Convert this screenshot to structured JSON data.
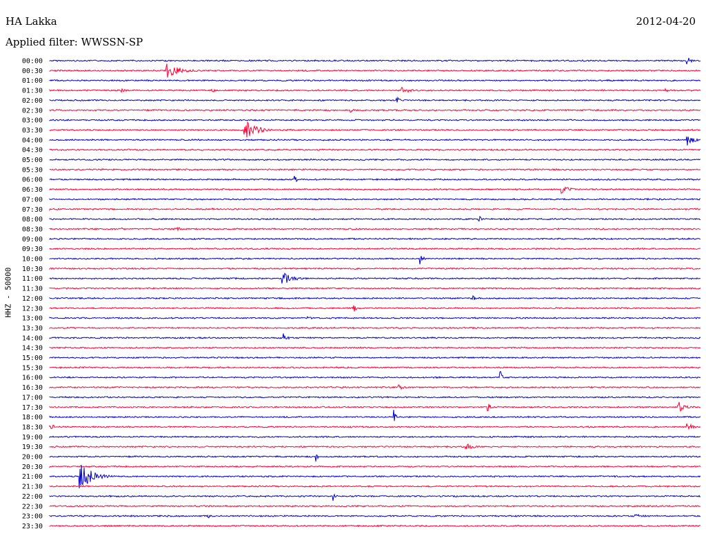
{
  "header": {
    "station": "HA Lakka",
    "date": "2012-04-20",
    "filter": "Applied filter: WWSSN-SP"
  },
  "chart_data": {
    "type": "line",
    "title": "HA Lakka",
    "ylabel": "HHZ - 50000",
    "colors": {
      "blue": "#0000cc",
      "red": "#ff0033"
    },
    "rows": [
      "00:00",
      "00:30",
      "01:00",
      "01:30",
      "02:00",
      "02:30",
      "03:00",
      "03:30",
      "04:00",
      "04:30",
      "05:00",
      "05:30",
      "06:00",
      "06:30",
      "07:00",
      "07:30",
      "08:00",
      "08:30",
      "09:00",
      "09:30",
      "10:00",
      "10:30",
      "11:00",
      "11:30",
      "12:00",
      "12:30",
      "13:00",
      "13:30",
      "14:00",
      "14:30",
      "15:00",
      "15:30",
      "16:00",
      "16:30",
      "17:00",
      "17:30",
      "18:00",
      "18:30",
      "19:00",
      "19:30",
      "20:00",
      "20:30",
      "21:00",
      "21:30",
      "22:00",
      "22:30",
      "23:00",
      "23:30"
    ],
    "events": [
      {
        "row": "00:00",
        "minute": 29.4,
        "amp": 12,
        "len": 0.4
      },
      {
        "row": "00:30",
        "minute": 5.4,
        "amp": 12,
        "len": 1.8
      },
      {
        "row": "01:30",
        "minute": 3.3,
        "amp": 3,
        "len": 0.8
      },
      {
        "row": "01:30",
        "minute": 7.5,
        "amp": 3,
        "len": 0.6
      },
      {
        "row": "01:30",
        "minute": 16.2,
        "amp": 6,
        "len": 1.4
      },
      {
        "row": "01:30",
        "minute": 28.4,
        "amp": 3,
        "len": 0.5
      },
      {
        "row": "02:00",
        "minute": 16.0,
        "amp": 8,
        "len": 0.3
      },
      {
        "row": "02:30",
        "minute": 13.9,
        "amp": 3,
        "len": 0.6
      },
      {
        "row": "03:30",
        "minute": 9.0,
        "amp": 16,
        "len": 1.5
      },
      {
        "row": "04:00",
        "minute": 29.4,
        "amp": 8,
        "len": 1.2
      },
      {
        "row": "06:00",
        "minute": 11.3,
        "amp": 7,
        "len": 0.3
      },
      {
        "row": "06:30",
        "minute": 23.6,
        "amp": 7,
        "len": 1.0
      },
      {
        "row": "07:30",
        "minute": 7.5,
        "amp": 3,
        "len": 0.3
      },
      {
        "row": "08:00",
        "minute": 19.8,
        "amp": 8,
        "len": 0.3
      },
      {
        "row": "08:30",
        "minute": 3.3,
        "amp": 2,
        "len": 0.8
      },
      {
        "row": "08:30",
        "minute": 5.8,
        "amp": 3,
        "len": 1.5
      },
      {
        "row": "10:00",
        "minute": 17.1,
        "amp": 7,
        "len": 0.4
      },
      {
        "row": "11:00",
        "minute": 10.7,
        "amp": 10,
        "len": 1.6
      },
      {
        "row": "12:00",
        "minute": 19.5,
        "amp": 7,
        "len": 0.3
      },
      {
        "row": "12:30",
        "minute": 14.0,
        "amp": 7,
        "len": 0.4
      },
      {
        "row": "13:00",
        "minute": 11.9,
        "amp": 4,
        "len": 0.6
      },
      {
        "row": "14:00",
        "minute": 10.8,
        "amp": 7,
        "len": 0.5
      },
      {
        "row": "16:00",
        "minute": 20.8,
        "amp": 8,
        "len": 0.3
      },
      {
        "row": "16:30",
        "minute": 16.1,
        "amp": 5,
        "len": 0.8
      },
      {
        "row": "17:30",
        "minute": 20.2,
        "amp": 6,
        "len": 0.5
      },
      {
        "row": "17:30",
        "minute": 29.0,
        "amp": 8,
        "len": 0.8
      },
      {
        "row": "18:00",
        "minute": 15.9,
        "amp": 7,
        "len": 0.3
      },
      {
        "row": "18:30",
        "minute": 0.0,
        "amp": 7,
        "len": 0.6
      },
      {
        "row": "18:30",
        "minute": 29.4,
        "amp": 6,
        "len": 0.8
      },
      {
        "row": "19:30",
        "minute": 19.2,
        "amp": 5,
        "len": 1.2
      },
      {
        "row": "20:00",
        "minute": 12.3,
        "amp": 6,
        "len": 0.3
      },
      {
        "row": "21:00",
        "minute": 1.4,
        "amp": 22,
        "len": 1.6
      },
      {
        "row": "22:00",
        "minute": 13.1,
        "amp": 6,
        "len": 0.3
      },
      {
        "row": "23:00",
        "minute": 7.3,
        "amp": 4,
        "len": 0.4
      },
      {
        "row": "23:00",
        "minute": 27.0,
        "amp": 3,
        "len": 1.6
      }
    ]
  }
}
